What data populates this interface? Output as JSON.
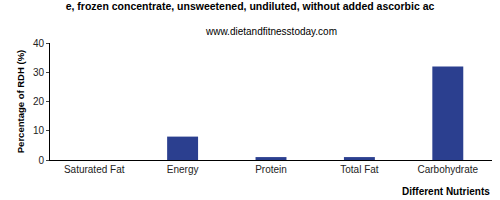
{
  "chart_data": {
    "type": "bar",
    "title": "e, frozen concentrate, unsweetened, undiluted, without added ascorbic ac",
    "subtitle": "www.dietandfitnesstoday.com",
    "x_label": "Different Nutrients",
    "y_label": "Percentage of RDH (%)",
    "categories": [
      "Saturated Fat",
      "Energy",
      "Protein",
      "Total Fat",
      "Carbohydrate"
    ],
    "values": [
      0,
      8,
      1,
      1,
      32
    ],
    "color": "#2b3f8f",
    "ylim": [
      0,
      40
    ],
    "yticks": [
      0,
      10,
      20,
      30,
      40
    ],
    "grid": false
  }
}
